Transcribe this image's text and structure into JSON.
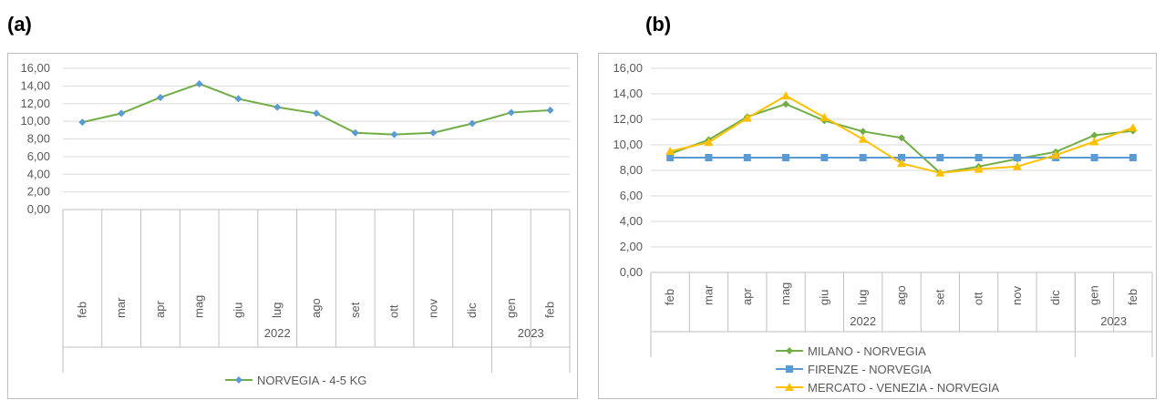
{
  "panels": {
    "a_label": "(a)",
    "b_label": "(b)"
  },
  "chart_data": [
    {
      "type": "line",
      "title": "",
      "xlabel": "",
      "ylabel": "",
      "categories": [
        "feb",
        "mar",
        "apr",
        "mag",
        "giu",
        "lug",
        "ago",
        "set",
        "ott",
        "nov",
        "dic",
        "gen",
        "feb"
      ],
      "year_groups": [
        {
          "label": "2022",
          "span": 11
        },
        {
          "label": "2023",
          "span": 2
        }
      ],
      "ylim": [
        0,
        16
      ],
      "ytick_labels": [
        "0,00",
        "2,00",
        "4,00",
        "6,00",
        "8,00",
        "10,00",
        "12,00",
        "14,00",
        "16,00"
      ],
      "grid": true,
      "legend_position": "bottom",
      "series": [
        {
          "name": "NORVEGIA - 4-5 KG",
          "values": [
            9.9,
            10.9,
            12.7,
            14.25,
            12.55,
            11.6,
            10.9,
            8.7,
            8.5,
            8.7,
            9.75,
            11.0,
            11.25
          ],
          "color": "#70ad47",
          "marker": "diamond",
          "marker_color": "#5b9bd5"
        }
      ]
    },
    {
      "type": "line",
      "title": "",
      "xlabel": "",
      "ylabel": "",
      "categories": [
        "feb",
        "mar",
        "apr",
        "mag",
        "giu",
        "lug",
        "ago",
        "set",
        "ott",
        "nov",
        "dic",
        "gen",
        "feb"
      ],
      "year_groups": [
        {
          "label": "2022",
          "span": 11
        },
        {
          "label": "2023",
          "span": 2
        }
      ],
      "ylim": [
        0,
        16
      ],
      "ytick_labels": [
        "0,00",
        "2,00",
        "4,00",
        "6,00",
        "8,00",
        "10,00",
        "12,00",
        "14,00",
        "16,00"
      ],
      "grid": true,
      "legend_position": "bottom",
      "series": [
        {
          "name": "MILANO - NORVEGIA",
          "values": [
            9.3,
            10.4,
            12.2,
            13.2,
            11.9,
            11.05,
            10.55,
            7.8,
            8.3,
            8.9,
            9.45,
            10.75,
            11.1
          ],
          "color": "#70ad47",
          "marker": "diamond",
          "marker_color": "#70ad47"
        },
        {
          "name": "FIRENZE - NORVEGIA",
          "values": [
            9.0,
            9.0,
            9.0,
            9.0,
            9.0,
            9.0,
            9.0,
            9.0,
            9.0,
            9.0,
            9.0,
            9.0,
            9.0
          ],
          "color": "#5b9bd5",
          "marker": "square",
          "marker_color": "#5b9bd5"
        },
        {
          "name": "MERCATO - VENEZIA - NORVEGIA",
          "values": [
            9.5,
            10.2,
            12.1,
            13.85,
            12.15,
            10.45,
            8.55,
            7.8,
            8.1,
            8.3,
            9.2,
            10.25,
            11.35
          ],
          "color": "#ffc000",
          "marker": "triangle",
          "marker_color": "#ffc000"
        }
      ]
    }
  ]
}
